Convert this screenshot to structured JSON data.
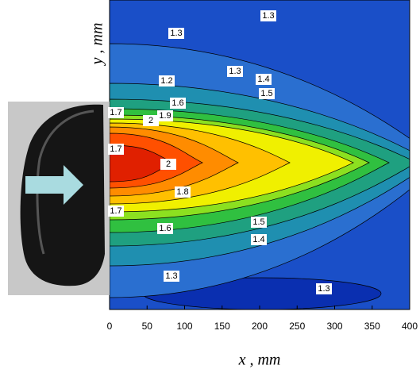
{
  "chart_data": {
    "type": "contour",
    "x_label": "x , mm",
    "y_label": "y , mm",
    "xlim": [
      0,
      400
    ],
    "xticks": [
      0,
      50,
      100,
      150,
      200,
      250,
      300,
      350,
      400
    ],
    "contour_labels": [
      1.3,
      1.3,
      1.3,
      1.4,
      1.2,
      1.5,
      1.6,
      1.7,
      2,
      1.9,
      1.7,
      2,
      1.8,
      1.7,
      1.5,
      1.6,
      1.4,
      1.3,
      1.3
    ]
  }
}
